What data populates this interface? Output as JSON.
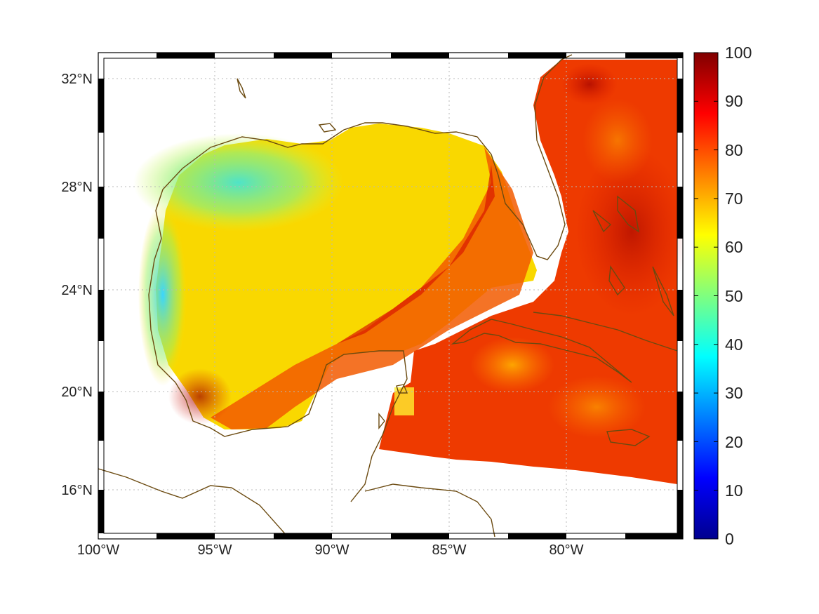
{
  "map": {
    "projection": "Mercator",
    "lon_range": [
      -100,
      -75.3
    ],
    "lat_range": [
      14.1,
      33.0
    ],
    "lon_tick_labels": [
      "100°W",
      "95°W",
      "90°W",
      "85°W",
      "80°W"
    ],
    "lat_tick_labels": [
      "32°N",
      "28°N",
      "24°N",
      "20°N",
      "16°N"
    ],
    "lon_ticks": [
      -100,
      -95,
      -90,
      -85,
      -80
    ],
    "lat_ticks": [
      32,
      28,
      24,
      20,
      16
    ],
    "grid": "dotted",
    "coastline_color": "#6b4a10",
    "field_description": "Gridded oceanic scalar field over Gulf of Mexico and Caribbean; lowest values (~40-55) along northwestern Gulf coast, ~60-70 across central Gulf, highest (~80-95) in Loop Current band, Caribbean and Atlantic east of Florida"
  },
  "colorbar": {
    "colormap": "jet",
    "min": 0,
    "max": 100,
    "tick_labels": [
      "100",
      "90",
      "80",
      "70",
      "60",
      "50",
      "40",
      "30",
      "20",
      "10",
      "0"
    ]
  },
  "colors": {
    "land": "#ffffff",
    "grid": "#b0b0b0",
    "frame": "#000000"
  }
}
